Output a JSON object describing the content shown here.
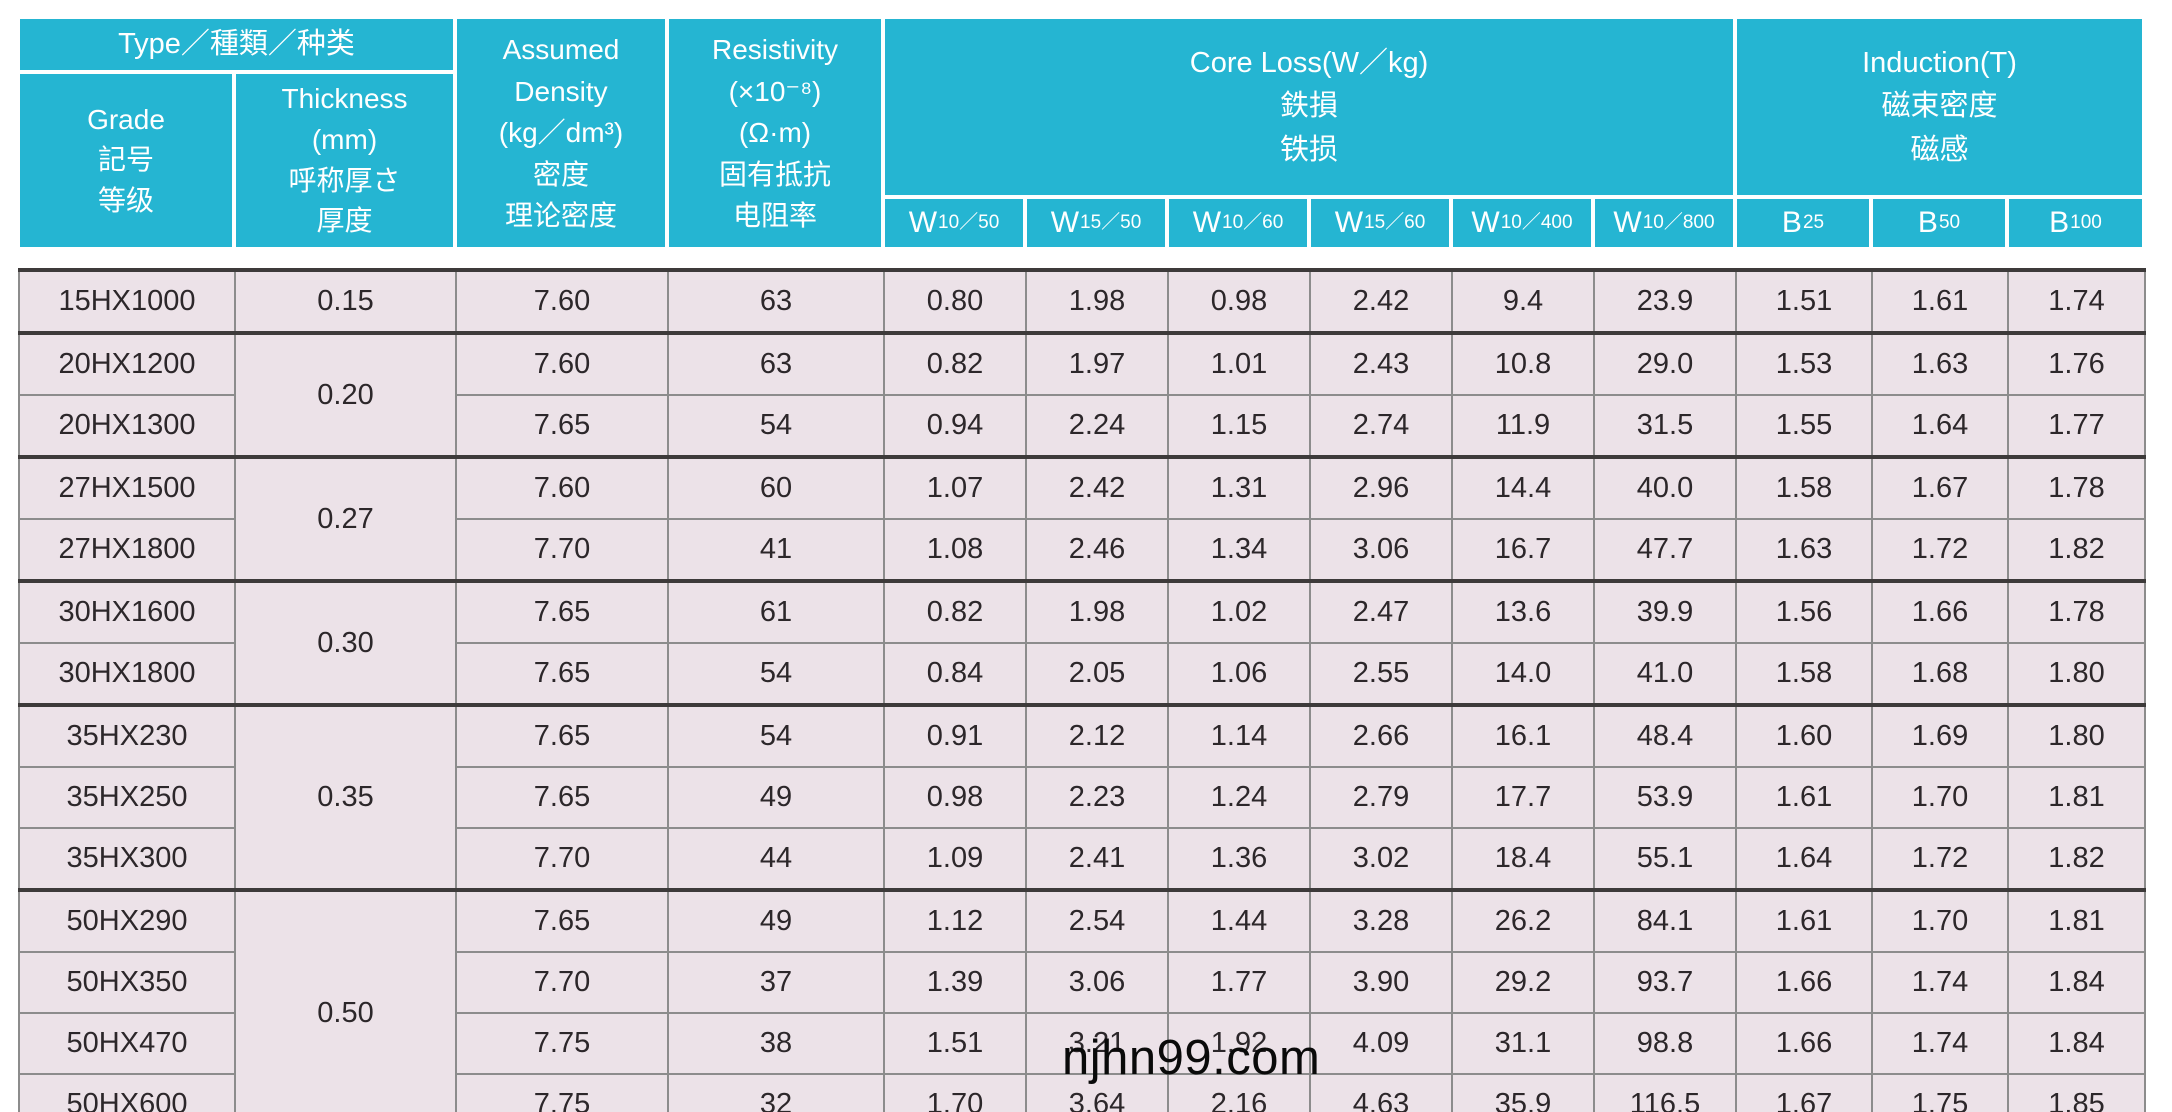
{
  "colors": {
    "header_bg": "#25b5d2",
    "header_text": "#ffffff",
    "row_bg": "#ece2e8",
    "grid_line": "#8c8c8c",
    "group_line": "#3d3a3a",
    "data_text": "#2c272a"
  },
  "watermark": {
    "text": "njhn99.com"
  },
  "table": {
    "header": {
      "type_group": "Type／種類／种类",
      "grade": "Grade\n記号\n等级",
      "thickness": "Thickness\n(mm)\n呼称厚さ\n厚度",
      "density": "Assumed\nDensity\n(kg／dm³)\n密度\n理论密度",
      "resistivity": "Resistivity\n(×10⁻⁸)\n(Ω·m)\n固有抵抗\n电阻率",
      "core_loss": "Core Loss(W／kg)\n鉄損\n铁损",
      "induction": "Induction(T)\n磁束密度\n磁感",
      "core_loss_subcols": [
        {
          "base": "W",
          "sub": "10／50"
        },
        {
          "base": "W",
          "sub": "15／50"
        },
        {
          "base": "W",
          "sub": "10／60"
        },
        {
          "base": "W",
          "sub": "15／60"
        },
        {
          "base": "W",
          "sub": "10／400"
        },
        {
          "base": "W",
          "sub": "10／800"
        }
      ],
      "induction_subcols": [
        {
          "base": "B",
          "sub": "25"
        },
        {
          "base": "B",
          "sub": "50"
        },
        {
          "base": "B",
          "sub": "100"
        }
      ]
    },
    "groups": [
      {
        "thickness": "0.15",
        "rows": [
          {
            "grade": "15HX1000",
            "density": "7.60",
            "resistivity": "63",
            "core_loss": [
              "0.80",
              "1.98",
              "0.98",
              "2.42",
              "9.4",
              "23.9"
            ],
            "induction": [
              "1.51",
              "1.61",
              "1.74"
            ]
          }
        ]
      },
      {
        "thickness": "0.20",
        "rows": [
          {
            "grade": "20HX1200",
            "density": "7.60",
            "resistivity": "63",
            "core_loss": [
              "0.82",
              "1.97",
              "1.01",
              "2.43",
              "10.8",
              "29.0"
            ],
            "induction": [
              "1.53",
              "1.63",
              "1.76"
            ]
          },
          {
            "grade": "20HX1300",
            "density": "7.65",
            "resistivity": "54",
            "core_loss": [
              "0.94",
              "2.24",
              "1.15",
              "2.74",
              "11.9",
              "31.5"
            ],
            "induction": [
              "1.55",
              "1.64",
              "1.77"
            ]
          }
        ]
      },
      {
        "thickness": "0.27",
        "rows": [
          {
            "grade": "27HX1500",
            "density": "7.60",
            "resistivity": "60",
            "core_loss": [
              "1.07",
              "2.42",
              "1.31",
              "2.96",
              "14.4",
              "40.0"
            ],
            "induction": [
              "1.58",
              "1.67",
              "1.78"
            ]
          },
          {
            "grade": "27HX1800",
            "density": "7.70",
            "resistivity": "41",
            "core_loss": [
              "1.08",
              "2.46",
              "1.34",
              "3.06",
              "16.7",
              "47.7"
            ],
            "induction": [
              "1.63",
              "1.72",
              "1.82"
            ]
          }
        ]
      },
      {
        "thickness": "0.30",
        "rows": [
          {
            "grade": "30HX1600",
            "density": "7.65",
            "resistivity": "61",
            "core_loss": [
              "0.82",
              "1.98",
              "1.02",
              "2.47",
              "13.6",
              "39.9"
            ],
            "induction": [
              "1.56",
              "1.66",
              "1.78"
            ]
          },
          {
            "grade": "30HX1800",
            "density": "7.65",
            "resistivity": "54",
            "core_loss": [
              "0.84",
              "2.05",
              "1.06",
              "2.55",
              "14.0",
              "41.0"
            ],
            "induction": [
              "1.58",
              "1.68",
              "1.80"
            ]
          }
        ]
      },
      {
        "thickness": "0.35",
        "rows": [
          {
            "grade": "35HX230",
            "density": "7.65",
            "resistivity": "54",
            "core_loss": [
              "0.91",
              "2.12",
              "1.14",
              "2.66",
              "16.1",
              "48.4"
            ],
            "induction": [
              "1.60",
              "1.69",
              "1.80"
            ]
          },
          {
            "grade": "35HX250",
            "density": "7.65",
            "resistivity": "49",
            "core_loss": [
              "0.98",
              "2.23",
              "1.24",
              "2.79",
              "17.7",
              "53.9"
            ],
            "induction": [
              "1.61",
              "1.70",
              "1.81"
            ]
          },
          {
            "grade": "35HX300",
            "density": "7.70",
            "resistivity": "44",
            "core_loss": [
              "1.09",
              "2.41",
              "1.36",
              "3.02",
              "18.4",
              "55.1"
            ],
            "induction": [
              "1.64",
              "1.72",
              "1.82"
            ]
          }
        ]
      },
      {
        "thickness": "0.50",
        "rows": [
          {
            "grade": "50HX290",
            "density": "7.65",
            "resistivity": "49",
            "core_loss": [
              "1.12",
              "2.54",
              "1.44",
              "3.28",
              "26.2",
              "84.1"
            ],
            "induction": [
              "1.61",
              "1.70",
              "1.81"
            ]
          },
          {
            "grade": "50HX350",
            "density": "7.70",
            "resistivity": "37",
            "core_loss": [
              "1.39",
              "3.06",
              "1.77",
              "3.90",
              "29.2",
              "93.7"
            ],
            "induction": [
              "1.66",
              "1.74",
              "1.84"
            ]
          },
          {
            "grade": "50HX470",
            "density": "7.75",
            "resistivity": "38",
            "core_loss": [
              "1.51",
              "3.21",
              "1.92",
              "4.09",
              "31.1",
              "98.8"
            ],
            "induction": [
              "1.66",
              "1.74",
              "1.84"
            ]
          },
          {
            "grade": "50HX600",
            "density": "7.75",
            "resistivity": "32",
            "core_loss": [
              "1.70",
              "3.64",
              "2.16",
              "4.63",
              "35.9",
              "116.5"
            ],
            "induction": [
              "1.67",
              "1.75",
              "1.85"
            ]
          }
        ]
      }
    ]
  }
}
